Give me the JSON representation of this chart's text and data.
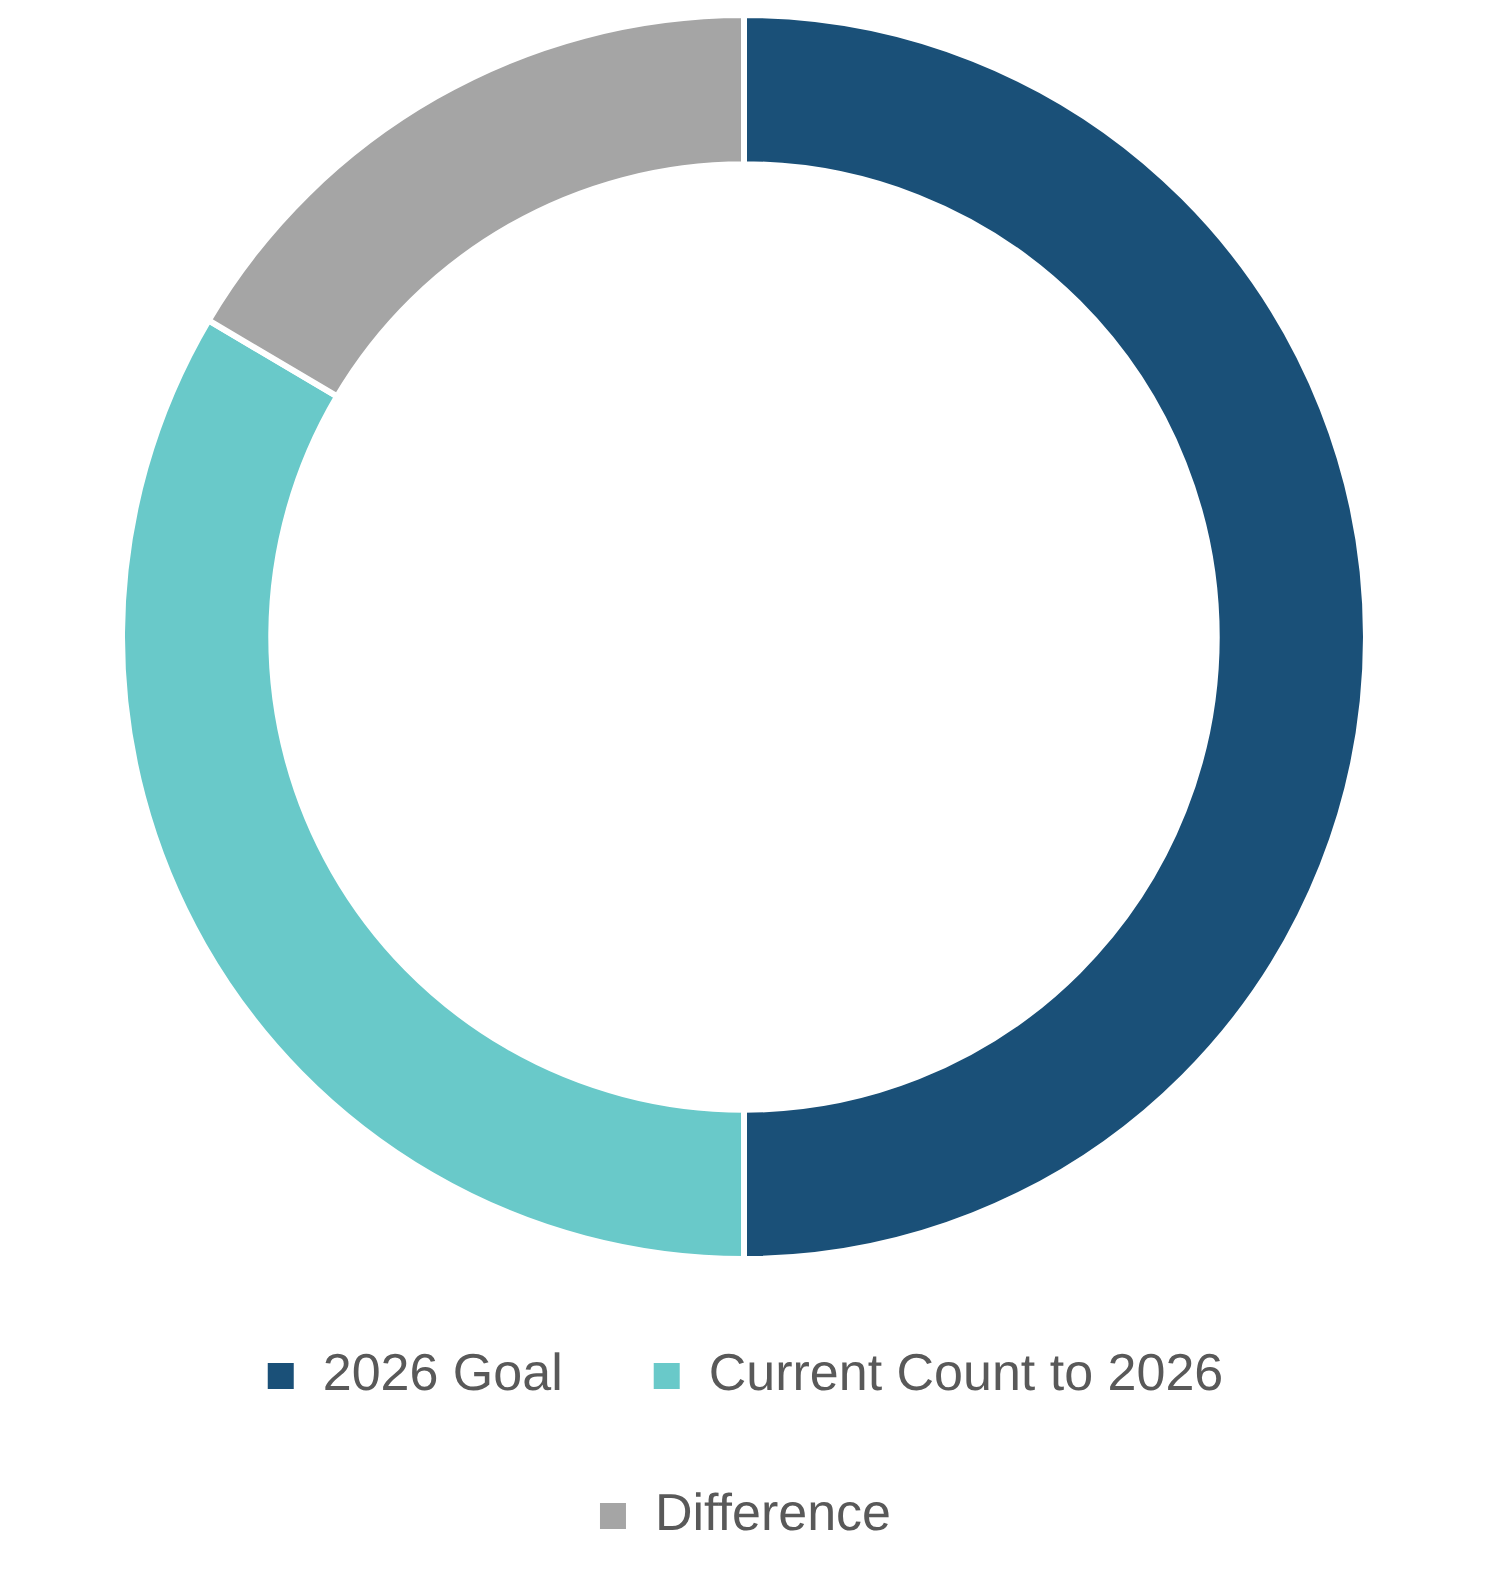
{
  "chart_data": {
    "type": "donut",
    "categories": [
      "2026 Goal",
      "Current Count to 2026",
      "Difference"
    ],
    "values": [
      50,
      33.5,
      16.5
    ],
    "colors": [
      "#1a5078",
      "#69c9c9",
      "#a5a5a5"
    ],
    "legend": "bottom"
  }
}
